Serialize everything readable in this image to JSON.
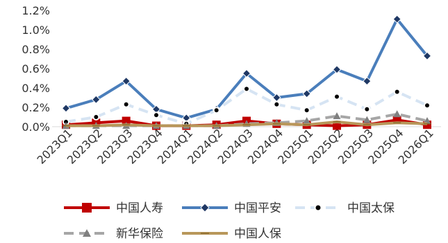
{
  "chart_data": {
    "type": "line",
    "title": "",
    "xlabel": "",
    "ylabel": "",
    "categories": [
      "2023Q1",
      "2023Q2",
      "2023Q3",
      "2023Q4",
      "2024Q1",
      "2024Q2",
      "2024Q3",
      "2024Q4",
      "2025Q1",
      "2025Q2",
      "2025Q3",
      "2025Q4",
      "2026Q1"
    ],
    "ylim": [
      0,
      0.012
    ],
    "yticks": [
      0,
      0.002,
      0.004,
      0.006,
      0.008,
      0.01,
      0.012
    ],
    "ytick_labels": [
      "0.0%",
      "0.2%",
      "0.4%",
      "0.6%",
      "0.8%",
      "1.0%",
      "1.2%"
    ],
    "grid": false,
    "legend_position": "bottom",
    "series": [
      {
        "name": "中国人寿",
        "color": "#C00000",
        "dash": "solid",
        "marker": "square",
        "values": [
          0.0002,
          0.0004,
          0.0006,
          0.0001,
          0.0001,
          0.0002,
          0.0006,
          0.0003,
          0.0002,
          0.0001,
          0.0002,
          0.0007,
          0.0002
        ]
      },
      {
        "name": "中国平安",
        "color": "#4A7EBB",
        "dash": "solid",
        "marker": "diamond",
        "values": [
          0.0019,
          0.0028,
          0.0047,
          0.0018,
          0.0009,
          0.0018,
          0.0055,
          0.003,
          0.0034,
          0.0059,
          0.0047,
          0.0111,
          0.0073
        ]
      },
      {
        "name": "中国太保",
        "color": "#D6E4F3",
        "dash": "dashed",
        "marker": "circle",
        "values": [
          0.0005,
          0.001,
          0.0023,
          0.0012,
          0.0003,
          0.0017,
          0.0039,
          0.0023,
          0.0017,
          0.0031,
          0.0018,
          0.0036,
          0.0022
        ]
      },
      {
        "name": "新华保险",
        "color": "#A6A6A6",
        "dash": "dashed",
        "marker": "triangle",
        "values": [
          0.0001,
          0.0001,
          0.0001,
          0.0001,
          0.0001,
          0.0001,
          0.0003,
          0.0004,
          0.0006,
          0.0011,
          0.0007,
          0.0013,
          0.0006
        ]
      },
      {
        "name": "中国人保",
        "color": "#B8975A",
        "dash": "solid",
        "marker": "dash",
        "values": [
          0.0001,
          0.0001,
          0.0002,
          0.0001,
          0.0001,
          0.0001,
          0.0002,
          0.0003,
          0.0002,
          0.0005,
          0.0002,
          0.0004,
          0.0003
        ]
      }
    ]
  }
}
